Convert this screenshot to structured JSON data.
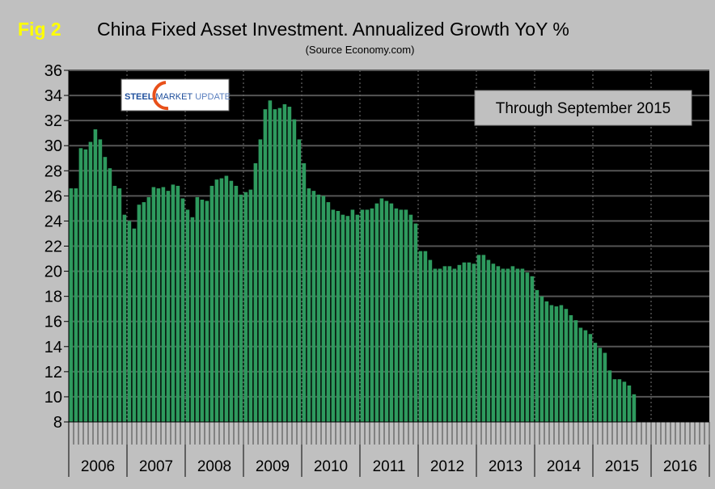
{
  "chart_data": {
    "type": "bar",
    "fig_label": "Fig 2",
    "title": "China Fixed Asset Investment. Annualized Growth YoY %",
    "subtitle": "(Source Economy.com)",
    "annotation": "Through September 2015",
    "logo_text": "STEEL MARKET UPDATE",
    "xlabel": "",
    "ylabel": "",
    "ylim": [
      8,
      36
    ],
    "yticks": [
      8,
      10,
      12,
      14,
      16,
      18,
      20,
      22,
      24,
      26,
      28,
      30,
      32,
      34,
      36
    ],
    "grid": true,
    "years": [
      "2006",
      "2007",
      "2008",
      "2009",
      "2010",
      "2011",
      "2012",
      "2013",
      "2014",
      "2015",
      "2016"
    ],
    "x_granularity": "monthly, Jan 2006 - Sep 2015",
    "values": [
      26.6,
      26.6,
      29.8,
      29.7,
      30.3,
      31.3,
      30.5,
      29.1,
      28.2,
      26.8,
      26.6,
      24.5,
      24.0,
      23.4,
      25.3,
      25.5,
      25.9,
      26.7,
      26.6,
      26.7,
      26.4,
      26.9,
      26.8,
      25.8,
      24.9,
      24.3,
      25.9,
      25.7,
      25.6,
      26.8,
      27.3,
      27.4,
      27.6,
      27.2,
      26.8,
      26.1,
      26.3,
      26.5,
      28.6,
      30.5,
      32.9,
      33.6,
      32.9,
      33.0,
      33.3,
      33.1,
      32.1,
      30.5,
      28.6,
      26.6,
      26.4,
      26.1,
      26.0,
      25.5,
      24.9,
      24.8,
      24.5,
      24.4,
      24.9,
      24.5,
      24.9,
      24.9,
      25.0,
      25.4,
      25.8,
      25.6,
      25.4,
      25.0,
      24.9,
      24.9,
      24.5,
      23.8,
      21.6,
      21.6,
      20.9,
      20.2,
      20.2,
      20.4,
      20.4,
      20.2,
      20.5,
      20.7,
      20.7,
      20.6,
      21.3,
      21.3,
      20.9,
      20.6,
      20.4,
      20.2,
      20.2,
      20.4,
      20.2,
      20.2,
      19.9,
      19.6,
      18.5,
      18.0,
      17.6,
      17.3,
      17.2,
      17.3,
      17.0,
      16.5,
      16.1,
      15.5,
      15.3,
      15.0,
      14.3,
      13.9,
      13.5,
      12.1,
      11.4,
      11.4,
      11.2,
      10.9,
      10.2
    ],
    "colors": {
      "bar": "#2e9a5e",
      "plot_bg": "#000000",
      "fig_label": "#ffff00",
      "background": "#c0c0c0"
    }
  }
}
